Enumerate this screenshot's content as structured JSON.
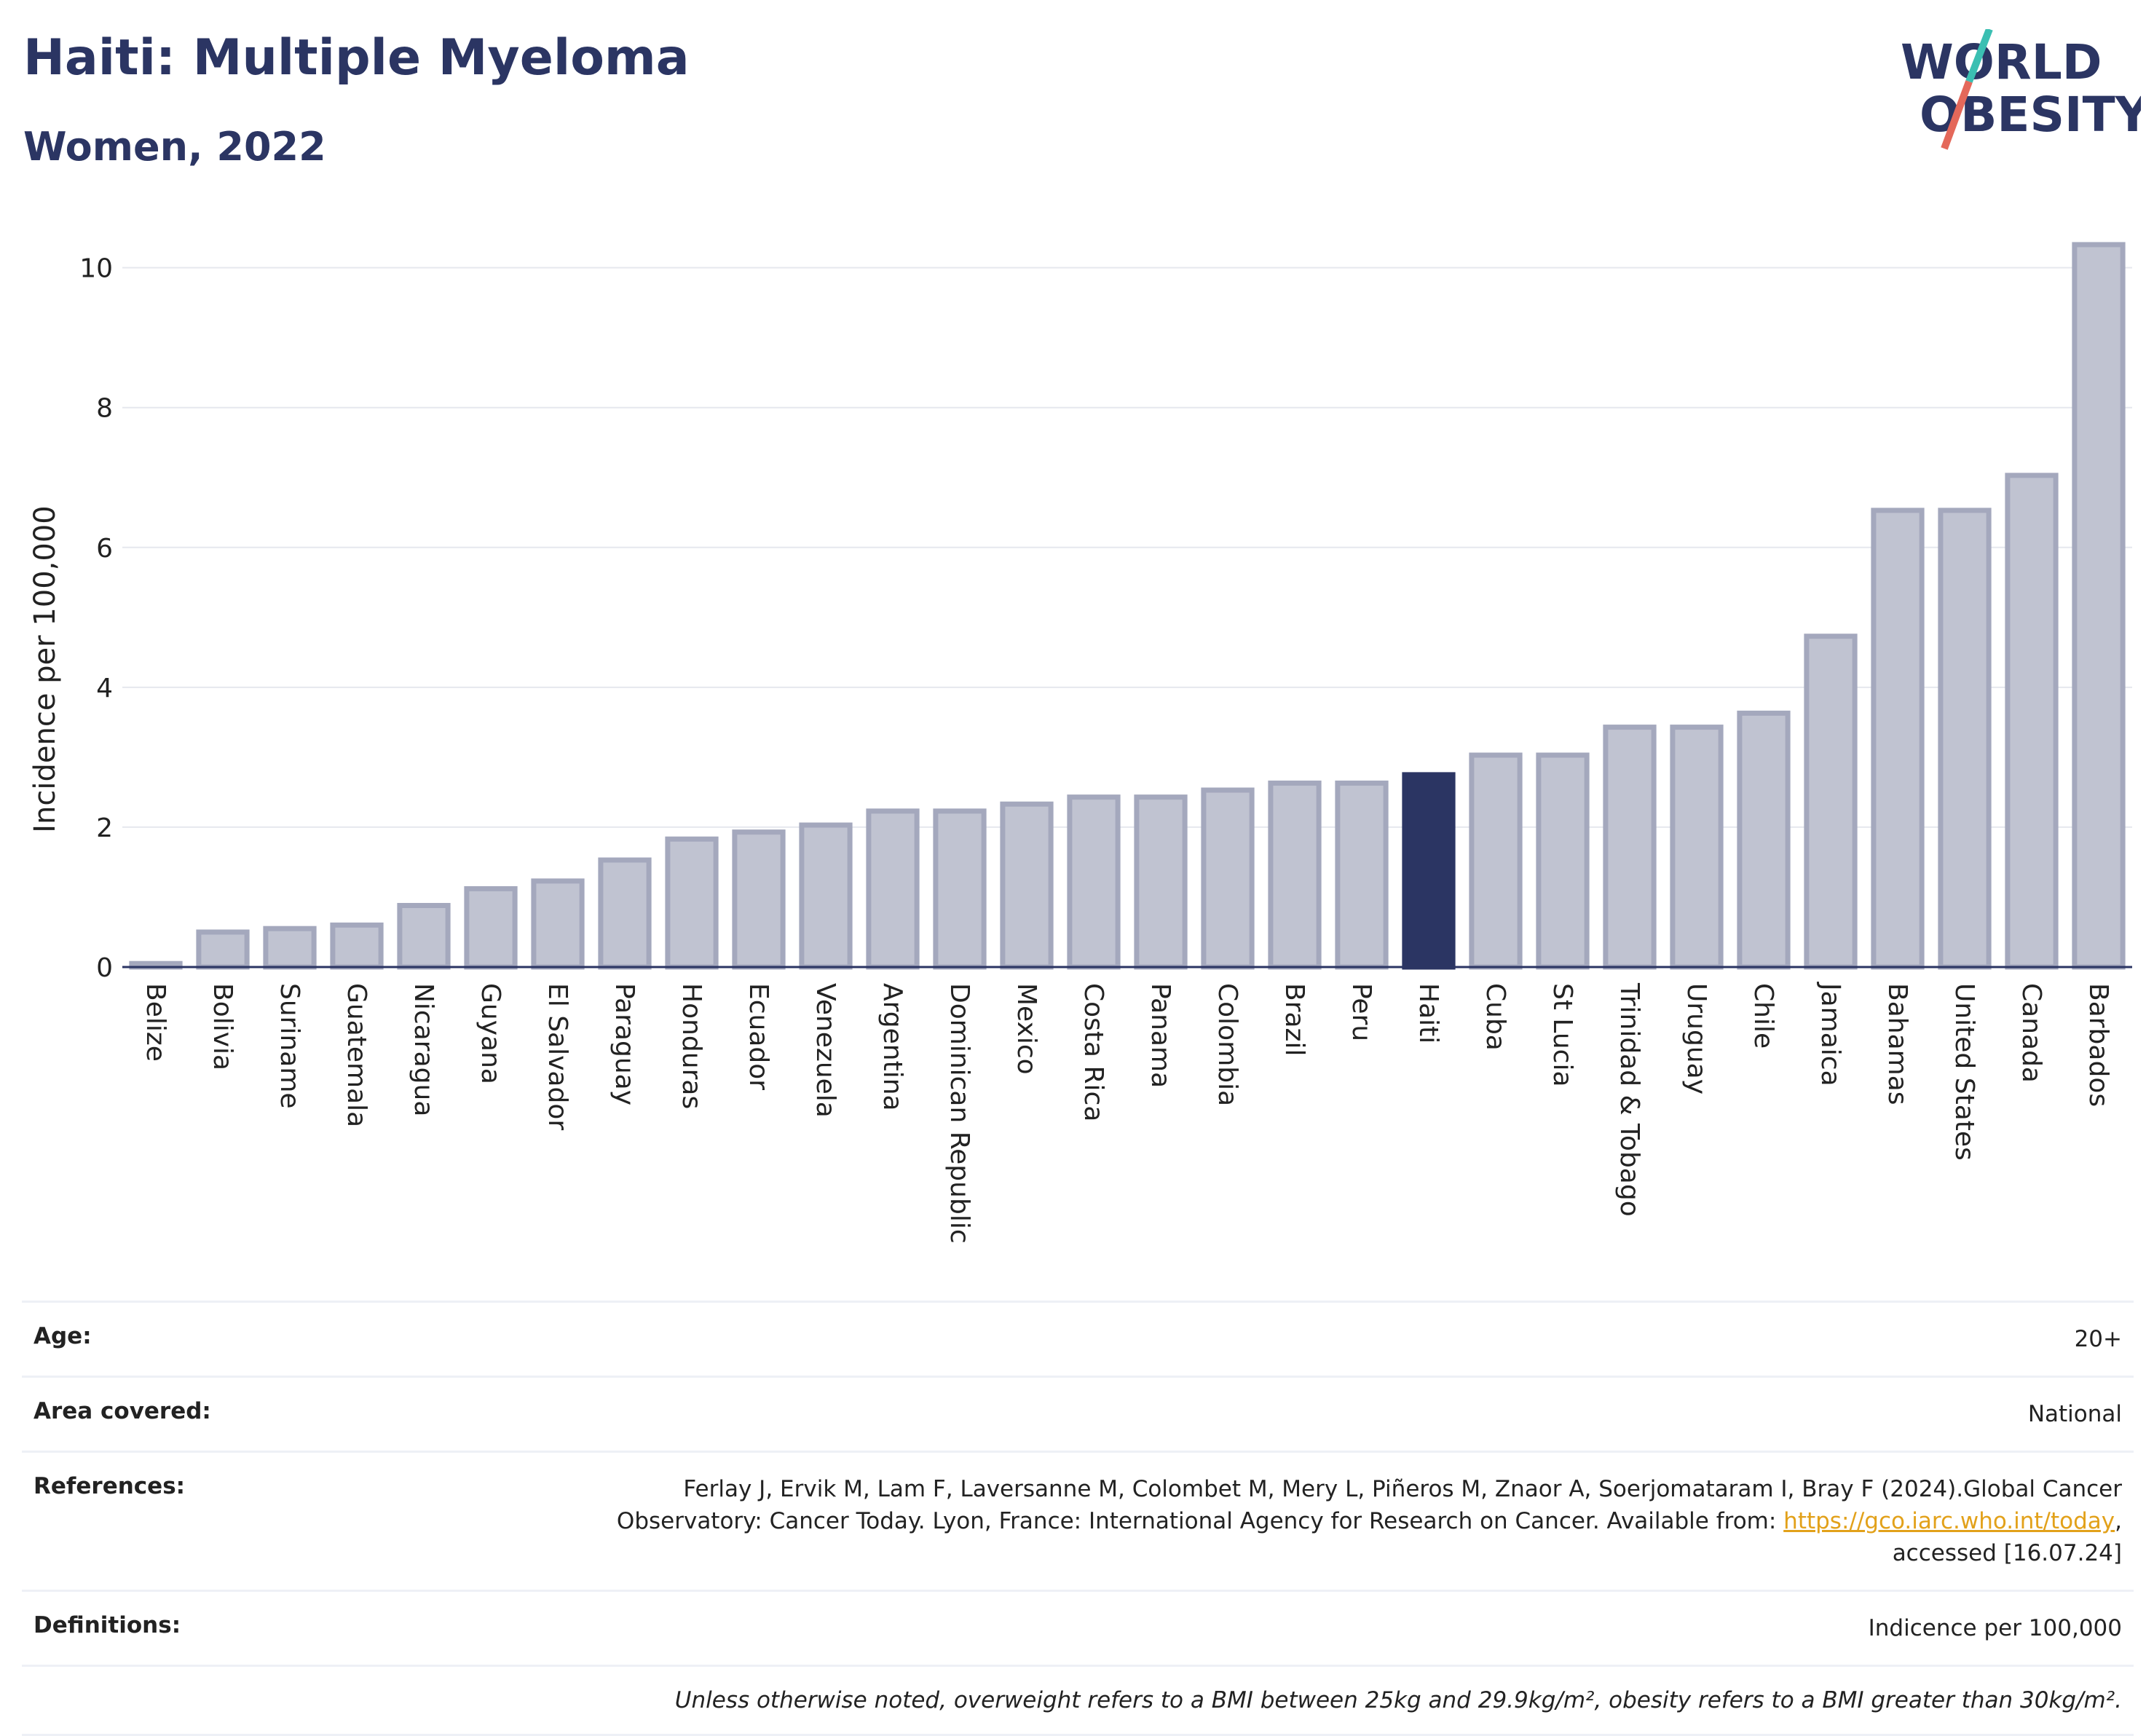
{
  "header": {
    "title": "Haiti: Multiple Myeloma",
    "subtitle": "Women, 2022",
    "logo_line1": "WORLD",
    "logo_line2": "OBESITY"
  },
  "colors": {
    "bar": "#c0c3d1",
    "bar_border": "#a4a8bd",
    "highlight": "#2b3563",
    "grid": "#e6e8ee",
    "logo_teal": "#3bbfb2",
    "logo_red": "#e4685a"
  },
  "chart_data": {
    "type": "bar",
    "title": "Haiti: Multiple Myeloma",
    "subtitle": "Women, 2022",
    "xlabel": "",
    "ylabel": "Incidence per 100,000",
    "ylim": [
      0,
      10.6
    ],
    "yticks": [
      0,
      2,
      4,
      6,
      8,
      10
    ],
    "grid": true,
    "highlight": "Haiti",
    "categories": [
      "Belize",
      "Bolivia",
      "Suriname",
      "Guatemala",
      "Nicaragua",
      "Guyana",
      "El Salvador",
      "Paraguay",
      "Honduras",
      "Ecuador",
      "Venezuela",
      "Argentina",
      "Dominican Republic",
      "Mexico",
      "Costa Rica",
      "Panama",
      "Colombia",
      "Brazil",
      "Peru",
      "Haiti",
      "Cuba",
      "St Lucia",
      "Trinidad & Tobago",
      "Uruguay",
      "Chile",
      "Jamaica",
      "Bahamas",
      "United States",
      "Canada",
      "Barbados"
    ],
    "values": [
      0.05,
      0.5,
      0.55,
      0.6,
      0.88,
      1.12,
      1.23,
      1.53,
      1.83,
      1.93,
      2.03,
      2.23,
      2.23,
      2.33,
      2.43,
      2.43,
      2.53,
      2.63,
      2.63,
      2.75,
      3.03,
      3.03,
      3.43,
      3.43,
      3.63,
      4.73,
      6.53,
      6.53,
      7.03,
      10.33
    ]
  },
  "info": {
    "age_label": "Age:",
    "age_value": "20+",
    "area_label": "Area covered:",
    "area_value": "National",
    "refs_label": "References:",
    "refs_text_1": "Ferlay J, Ervik M, Lam F, Laversanne M, Colombet M, Mery L, Piñeros M, Znaor A, Soerjomataram I, Bray F (2024).Global Cancer Observatory: Cancer Today. Lyon, France: International Agency for Research on Cancer. Available from: ",
    "refs_link": "https://gco.iarc.who.int/today",
    "refs_text_2": ", accessed [16.07.24]",
    "defs_label": "Definitions:",
    "defs_value": "Indicence per 100,000",
    "note": "Unless otherwise noted, overweight refers to a BMI between 25kg and 29.9kg/m², obesity refers to a BMI greater than 30kg/m²."
  }
}
